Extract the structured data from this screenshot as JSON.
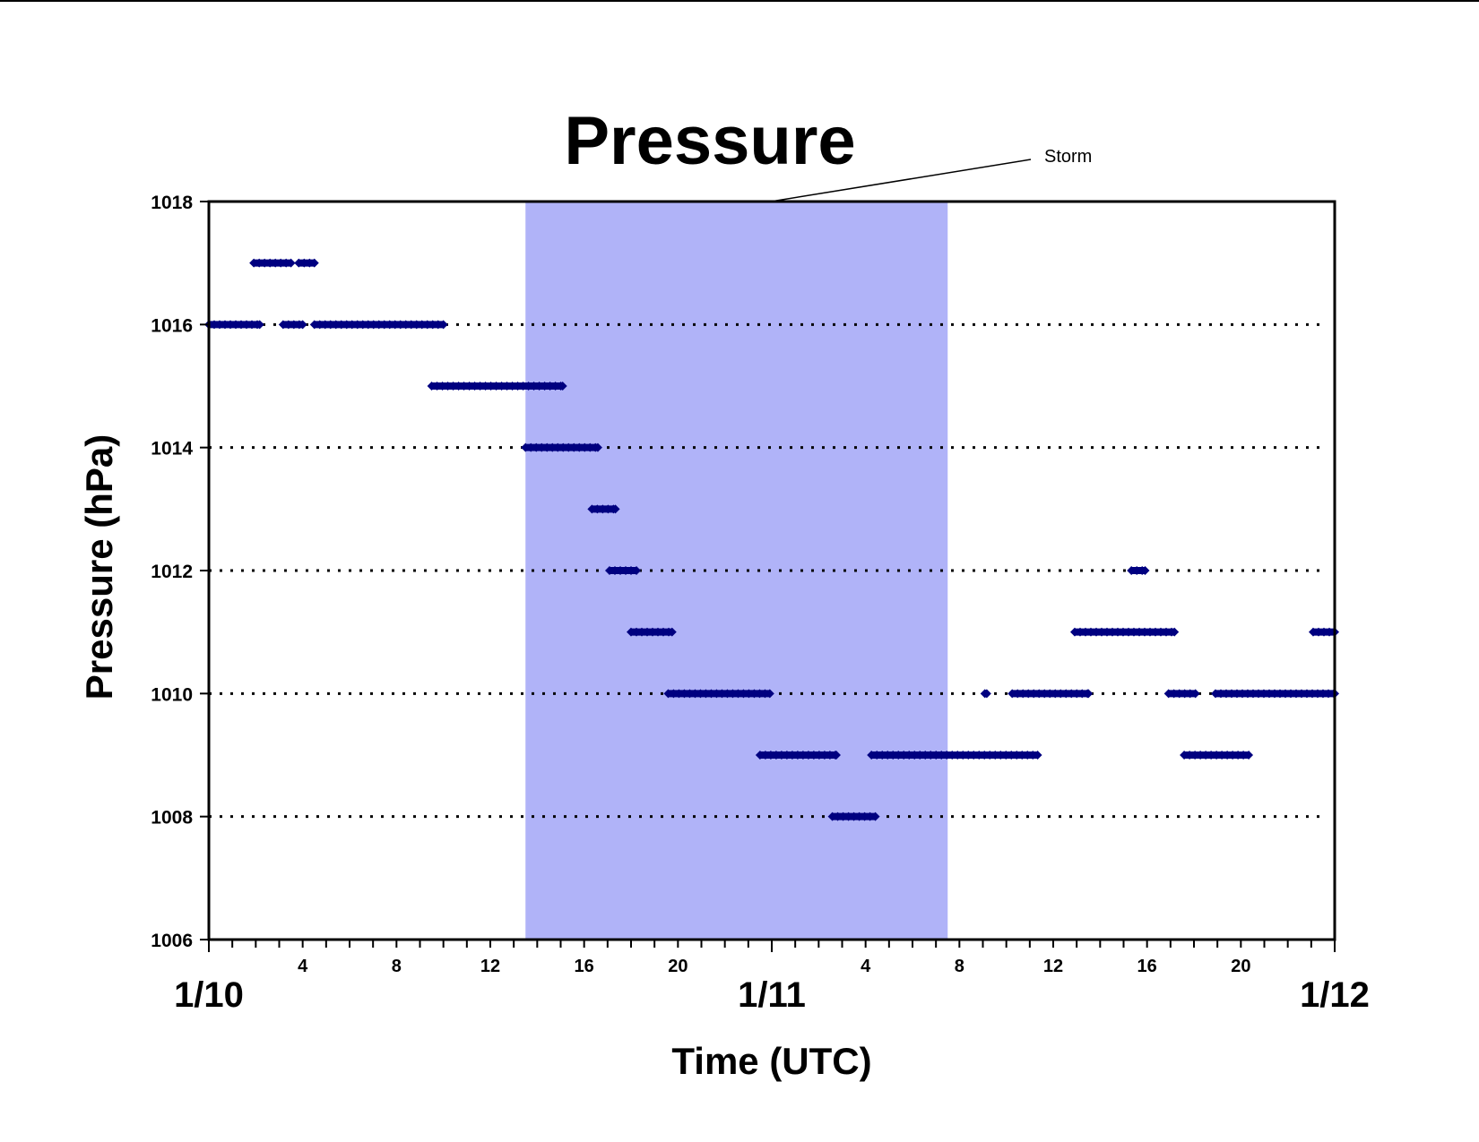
{
  "chart_data": {
    "type": "scatter",
    "title": "Pressure",
    "xlabel": "Time (UTC)",
    "ylabel": "Pressure (hPa)",
    "ylim": [
      1006,
      1018
    ],
    "yticks": [
      1006,
      1008,
      1010,
      1012,
      1014,
      1016,
      1018
    ],
    "xlim": [
      "1/10 00:00",
      "1/12 00:00"
    ],
    "hour_ticks": [
      "4",
      "8",
      "12",
      "16",
      "20",
      "4",
      "8",
      "12",
      "16",
      "20"
    ],
    "day_labels": [
      "1/10",
      "1/11",
      "1/12"
    ],
    "grid": "dotted horizontal at 1008, 1010, 1012, 1014, 1016",
    "point_color": "#000080",
    "shaded_region": {
      "label": "Storm",
      "start": "1/10 13:30",
      "end": "1/11 07:30",
      "color": "#b0b3f8"
    },
    "series": [
      {
        "segments": [
          {
            "y": 1016,
            "x_start": "1/10 00:00",
            "x_end": "1/10 02:10"
          },
          {
            "y": 1016,
            "x_start": "1/10 03:10",
            "x_end": "1/10 04:00"
          },
          {
            "y": 1016,
            "x_start": "1/10 04:30",
            "x_end": "1/10 10:00"
          },
          {
            "y": 1017,
            "x_start": "1/10 01:55",
            "x_end": "1/10 03:30"
          },
          {
            "y": 1017,
            "x_start": "1/10 03:50",
            "x_end": "1/10 04:30"
          },
          {
            "y": 1015,
            "x_start": "1/10 09:30",
            "x_end": "1/10 15:05"
          },
          {
            "y": 1014,
            "x_start": "1/10 13:30",
            "x_end": "1/10 16:35"
          },
          {
            "y": 1013,
            "x_start": "1/10 16:20",
            "x_end": "1/10 17:20"
          },
          {
            "y": 1012,
            "x_start": "1/10 17:05",
            "x_end": "1/10 18:15"
          },
          {
            "y": 1011,
            "x_start": "1/10 18:00",
            "x_end": "1/10 19:45"
          },
          {
            "y": 1010,
            "x_start": "1/10 19:35",
            "x_end": "1/10 23:55"
          },
          {
            "y": 1009,
            "x_start": "1/10 23:30",
            "x_end": "1/11 02:45"
          },
          {
            "y": 1008,
            "x_start": "1/11 02:35",
            "x_end": "1/11 04:25"
          },
          {
            "y": 1009,
            "x_start": "1/11 04:15",
            "x_end": "1/11 11:20"
          },
          {
            "y": 1010,
            "x_start": "1/11 09:05",
            "x_end": "1/11 09:10"
          },
          {
            "y": 1010,
            "x_start": "1/11 10:15",
            "x_end": "1/11 13:30"
          },
          {
            "y": 1011,
            "x_start": "1/11 12:55",
            "x_end": "1/11 17:10"
          },
          {
            "y": 1012,
            "x_start": "1/11 15:20",
            "x_end": "1/11 15:55"
          },
          {
            "y": 1010,
            "x_start": "1/11 16:55",
            "x_end": "1/11 18:05"
          },
          {
            "y": 1009,
            "x_start": "1/11 17:35",
            "x_end": "1/11 20:20"
          },
          {
            "y": 1010,
            "x_start": "1/11 18:55",
            "x_end": "1/12 00:00"
          },
          {
            "y": 1011,
            "x_start": "1/11 23:05",
            "x_end": "1/12 00:00"
          }
        ]
      }
    ]
  }
}
